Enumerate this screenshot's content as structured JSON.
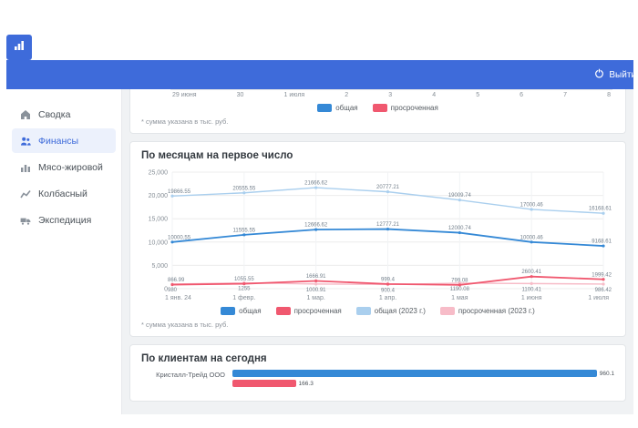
{
  "header": {
    "logout_label": "Выйти"
  },
  "sidebar": {
    "items": [
      {
        "key": "summary",
        "label": "Сводка",
        "icon": "home-icon",
        "active": false
      },
      {
        "key": "finance",
        "label": "Финансы",
        "icon": "finance-icon",
        "active": true
      },
      {
        "key": "meat",
        "label": "Мясо-жировой",
        "icon": "meat-icon",
        "active": false
      },
      {
        "key": "sausage",
        "label": "Колбасный",
        "icon": "sausage-icon",
        "active": false
      },
      {
        "key": "expedition",
        "label": "Экспедиция",
        "icon": "expedition-icon",
        "active": false
      }
    ]
  },
  "colors": {
    "header_blue": "#3e6bda",
    "series_total": "#3589d6",
    "series_overdue": "#f0586f",
    "series_total_2023": "#aacfee",
    "series_overdue_2023": "#f7bcc8",
    "content_bg": "#f0f2f4"
  },
  "footnote": "* сумма указана в тыс. руб.",
  "chart_data": [
    {
      "id": "daily",
      "type": "line",
      "title": "",
      "categories": [
        "29 июня",
        "30",
        "1 июля",
        "2",
        "3",
        "4",
        "5",
        "6",
        "7",
        "8"
      ],
      "legend": [
        "общая",
        "просроченная"
      ]
    },
    {
      "id": "monthly",
      "type": "line",
      "title": "По месяцам на первое число",
      "categories": [
        "1 янв. 24",
        "1 февр.",
        "1 мар.",
        "1 апр.",
        "1 мая",
        "1 июня",
        "1 июля"
      ],
      "ylim": [
        0,
        25000
      ],
      "yticks": [
        "0",
        "5,000",
        "10,000",
        "15,000",
        "20,000",
        "25,000"
      ],
      "grid": true,
      "legend_position": "bottom",
      "series": [
        {
          "name": "общая",
          "color": "#3589d6",
          "values": [
            10000.55,
            11555.55,
            12666.62,
            12777.21,
            12000.74,
            10000.46,
            9168.61
          ]
        },
        {
          "name": "просроченная",
          "color": "#f0586f",
          "values": [
            866.99,
            1055.55,
            1666.91,
            999.4,
            799.08,
            2600.41,
            1999.42
          ]
        },
        {
          "name": "общая (2023 г.)",
          "color": "#aacfee",
          "values": [
            19866.55,
            20555.55,
            21666.62,
            20777.21,
            19009.74,
            17000.46,
            16168.61
          ]
        },
        {
          "name": "просроченная (2023 г.)",
          "color": "#f7bcc8",
          "values": [
            980,
            1255,
            1000.91,
            900.4,
            1190.08,
            1100.41,
            986.42
          ]
        }
      ]
    },
    {
      "id": "clients",
      "type": "bar",
      "title": "По клиентам на сегодня",
      "categories": [
        "Кристалл-Трейд ООО"
      ],
      "xmax": 1000,
      "series": [
        {
          "name": "общая",
          "color": "#3589d6",
          "values": [
            960.1
          ]
        },
        {
          "name": "просроченная",
          "color": "#f0586f",
          "values": [
            166.3
          ]
        }
      ]
    }
  ]
}
